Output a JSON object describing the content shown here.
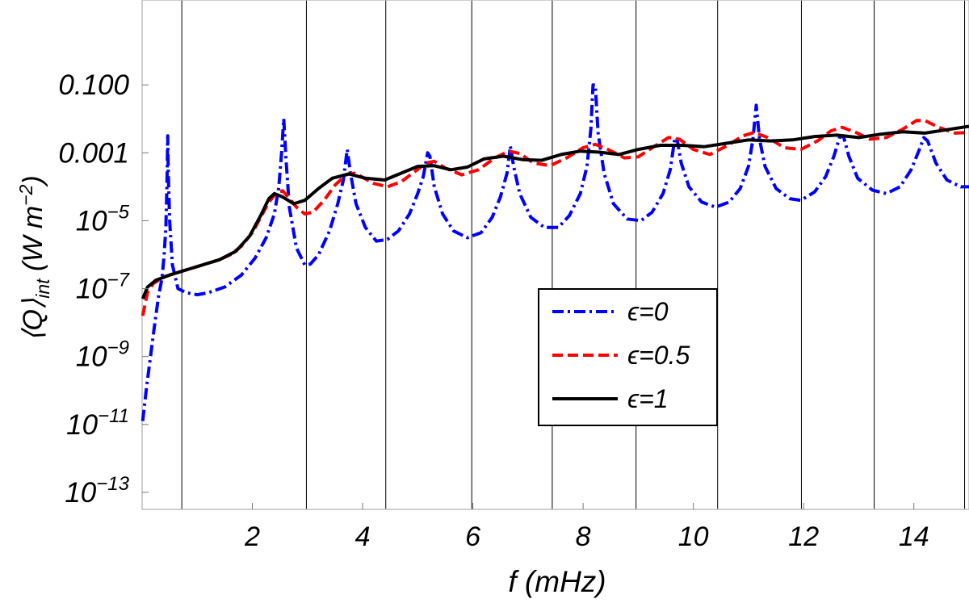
{
  "chart_data": {
    "type": "line",
    "xlabel": "f (mHz)",
    "ylabel": "⟨Q⟩int (W m−2)",
    "x_range": [
      0.0,
      15.0
    ],
    "y_range_log10": [
      -13.5,
      1.5
    ],
    "y_scale": "log",
    "x_ticks": [
      "2",
      "4",
      "6",
      "8",
      "10",
      "12",
      "14"
    ],
    "x_tick_values": [
      2,
      4,
      6,
      8,
      10,
      12,
      14
    ],
    "y_ticks": [
      {
        "base": "0.100",
        "exp": ""
      },
      {
        "base": "0.001",
        "exp": ""
      },
      {
        "base": "10",
        "exp": "−5"
      },
      {
        "base": "10",
        "exp": "−7"
      },
      {
        "base": "10",
        "exp": "−9"
      },
      {
        "base": "10",
        "exp": "−11"
      },
      {
        "base": "10",
        "exp": "−13"
      }
    ],
    "y_tick_log10": [
      -1,
      -3,
      -5,
      -7,
      -9,
      -11,
      -13
    ],
    "vertical_gridlines_mHz": [
      0.72,
      2.98,
      4.42,
      5.98,
      7.44,
      8.96,
      10.44,
      11.96,
      13.28,
      14.92
    ],
    "legend_position": "center-right",
    "series": [
      {
        "name": "ϵ=0",
        "color": "#0000ff",
        "style": "dash-dot",
        "points": [
          [
            0.01,
            -10.9
          ],
          [
            0.08,
            -9.9
          ],
          [
            0.16,
            -8.9
          ],
          [
            0.24,
            -7.9
          ],
          [
            0.3,
            -7.2
          ],
          [
            0.36,
            -6.7
          ],
          [
            0.4,
            -6.0
          ],
          [
            0.43,
            -5.2
          ],
          [
            0.45,
            -4.0
          ],
          [
            0.465,
            -2.5
          ],
          [
            0.475,
            -3.6
          ],
          [
            0.5,
            -5.0
          ],
          [
            0.55,
            -6.3
          ],
          [
            0.65,
            -7.0
          ],
          [
            0.8,
            -7.12
          ],
          [
            1.0,
            -7.18
          ],
          [
            1.2,
            -7.12
          ],
          [
            1.5,
            -6.95
          ],
          [
            1.8,
            -6.6
          ],
          [
            2.05,
            -6.1
          ],
          [
            2.25,
            -5.5
          ],
          [
            2.4,
            -4.8
          ],
          [
            2.48,
            -4.0
          ],
          [
            2.53,
            -3.0
          ],
          [
            2.57,
            -2.0
          ],
          [
            2.61,
            -3.2
          ],
          [
            2.67,
            -4.6
          ],
          [
            2.8,
            -5.8
          ],
          [
            2.95,
            -6.3
          ],
          [
            3.05,
            -6.28
          ],
          [
            3.2,
            -6.0
          ],
          [
            3.4,
            -5.3
          ],
          [
            3.55,
            -4.5
          ],
          [
            3.65,
            -3.8
          ],
          [
            3.72,
            -2.9
          ],
          [
            3.78,
            -3.6
          ],
          [
            3.88,
            -4.5
          ],
          [
            4.05,
            -5.2
          ],
          [
            4.25,
            -5.6
          ],
          [
            4.45,
            -5.55
          ],
          [
            4.65,
            -5.3
          ],
          [
            4.85,
            -4.8
          ],
          [
            5.0,
            -4.2
          ],
          [
            5.1,
            -3.7
          ],
          [
            5.18,
            -3.0
          ],
          [
            5.22,
            -3.1
          ],
          [
            5.3,
            -4.0
          ],
          [
            5.45,
            -4.8
          ],
          [
            5.65,
            -5.3
          ],
          [
            5.9,
            -5.5
          ],
          [
            6.15,
            -5.35
          ],
          [
            6.35,
            -4.9
          ],
          [
            6.5,
            -4.3
          ],
          [
            6.62,
            -3.6
          ],
          [
            6.68,
            -2.8
          ],
          [
            6.74,
            -3.4
          ],
          [
            6.85,
            -4.2
          ],
          [
            7.05,
            -4.9
          ],
          [
            7.3,
            -5.2
          ],
          [
            7.55,
            -5.2
          ],
          [
            7.75,
            -4.85
          ],
          [
            7.95,
            -4.2
          ],
          [
            8.07,
            -3.4
          ],
          [
            8.14,
            -2.3
          ],
          [
            8.18,
            -1.0
          ],
          [
            8.22,
            -1.0
          ],
          [
            8.27,
            -2.4
          ],
          [
            8.38,
            -3.6
          ],
          [
            8.55,
            -4.5
          ],
          [
            8.8,
            -4.95
          ],
          [
            9.05,
            -5.0
          ],
          [
            9.25,
            -4.75
          ],
          [
            9.45,
            -4.2
          ],
          [
            9.58,
            -3.5
          ],
          [
            9.66,
            -2.6
          ],
          [
            9.7,
            -2.55
          ],
          [
            9.78,
            -3.3
          ],
          [
            9.92,
            -4.0
          ],
          [
            10.15,
            -4.45
          ],
          [
            10.4,
            -4.6
          ],
          [
            10.65,
            -4.45
          ],
          [
            10.85,
            -4.05
          ],
          [
            11.0,
            -3.4
          ],
          [
            11.08,
            -2.6
          ],
          [
            11.14,
            -1.6
          ],
          [
            11.2,
            -2.6
          ],
          [
            11.3,
            -3.4
          ],
          [
            11.5,
            -4.05
          ],
          [
            11.75,
            -4.35
          ],
          [
            11.95,
            -4.4
          ],
          [
            12.2,
            -4.15
          ],
          [
            12.4,
            -3.7
          ],
          [
            12.55,
            -3.1
          ],
          [
            12.65,
            -2.55
          ],
          [
            12.72,
            -2.5
          ],
          [
            12.82,
            -3.1
          ],
          [
            12.98,
            -3.75
          ],
          [
            13.25,
            -4.1
          ],
          [
            13.5,
            -4.2
          ],
          [
            13.75,
            -4.0
          ],
          [
            13.95,
            -3.5
          ],
          [
            14.1,
            -2.9
          ],
          [
            14.18,
            -2.55
          ],
          [
            14.25,
            -2.65
          ],
          [
            14.4,
            -3.3
          ],
          [
            14.6,
            -3.8
          ],
          [
            14.85,
            -4.0
          ],
          [
            15.0,
            -4.0
          ]
        ]
      },
      {
        "name": "ϵ=0.5",
        "color": "#ff0000",
        "style": "dashed",
        "points": [
          [
            0.01,
            -7.8
          ],
          [
            0.1,
            -7.1
          ],
          [
            0.2,
            -6.85
          ],
          [
            0.4,
            -6.65
          ],
          [
            0.6,
            -6.55
          ],
          [
            0.8,
            -6.45
          ],
          [
            1.0,
            -6.35
          ],
          [
            1.2,
            -6.25
          ],
          [
            1.4,
            -6.15
          ],
          [
            1.6,
            -6.0
          ],
          [
            1.8,
            -5.75
          ],
          [
            2.0,
            -5.35
          ],
          [
            2.15,
            -4.9
          ],
          [
            2.3,
            -4.45
          ],
          [
            2.45,
            -4.15
          ],
          [
            2.55,
            -4.12
          ],
          [
            2.65,
            -4.3
          ],
          [
            2.8,
            -4.6
          ],
          [
            2.95,
            -4.8
          ],
          [
            3.1,
            -4.75
          ],
          [
            3.3,
            -4.4
          ],
          [
            3.5,
            -3.95
          ],
          [
            3.7,
            -3.65
          ],
          [
            3.85,
            -3.6
          ],
          [
            4.0,
            -3.72
          ],
          [
            4.2,
            -3.9
          ],
          [
            4.45,
            -4.0
          ],
          [
            4.7,
            -3.85
          ],
          [
            4.95,
            -3.55
          ],
          [
            5.15,
            -3.3
          ],
          [
            5.3,
            -3.25
          ],
          [
            5.5,
            -3.45
          ],
          [
            5.8,
            -3.65
          ],
          [
            6.1,
            -3.5
          ],
          [
            6.4,
            -3.15
          ],
          [
            6.65,
            -2.95
          ],
          [
            6.85,
            -3.02
          ],
          [
            7.1,
            -3.3
          ],
          [
            7.4,
            -3.38
          ],
          [
            7.7,
            -3.15
          ],
          [
            8.0,
            -2.85
          ],
          [
            8.22,
            -2.75
          ],
          [
            8.45,
            -2.9
          ],
          [
            8.75,
            -3.15
          ],
          [
            9.0,
            -3.12
          ],
          [
            9.3,
            -2.8
          ],
          [
            9.55,
            -2.55
          ],
          [
            9.75,
            -2.6
          ],
          [
            10.0,
            -2.9
          ],
          [
            10.3,
            -3.05
          ],
          [
            10.6,
            -2.8
          ],
          [
            10.9,
            -2.5
          ],
          [
            11.1,
            -2.4
          ],
          [
            11.35,
            -2.55
          ],
          [
            11.65,
            -2.85
          ],
          [
            11.95,
            -2.9
          ],
          [
            12.25,
            -2.65
          ],
          [
            12.5,
            -2.35
          ],
          [
            12.7,
            -2.25
          ],
          [
            12.95,
            -2.4
          ],
          [
            13.2,
            -2.6
          ],
          [
            13.5,
            -2.55
          ],
          [
            13.8,
            -2.3
          ],
          [
            14.05,
            -2.05
          ],
          [
            14.2,
            -2.05
          ],
          [
            14.45,
            -2.25
          ],
          [
            14.75,
            -2.42
          ],
          [
            15.0,
            -2.4
          ]
        ]
      },
      {
        "name": "ϵ=1",
        "color": "#000000",
        "style": "solid",
        "points": [
          [
            0.01,
            -7.3
          ],
          [
            0.1,
            -6.95
          ],
          [
            0.25,
            -6.75
          ],
          [
            0.5,
            -6.6
          ],
          [
            0.8,
            -6.45
          ],
          [
            1.1,
            -6.3
          ],
          [
            1.4,
            -6.15
          ],
          [
            1.7,
            -5.9
          ],
          [
            1.95,
            -5.45
          ],
          [
            2.15,
            -4.85
          ],
          [
            2.3,
            -4.35
          ],
          [
            2.4,
            -4.2
          ],
          [
            2.55,
            -4.3
          ],
          [
            2.75,
            -4.5
          ],
          [
            2.95,
            -4.4
          ],
          [
            3.2,
            -4.05
          ],
          [
            3.45,
            -3.75
          ],
          [
            3.75,
            -3.62
          ],
          [
            4.05,
            -3.75
          ],
          [
            4.4,
            -3.8
          ],
          [
            4.7,
            -3.6
          ],
          [
            5.0,
            -3.4
          ],
          [
            5.3,
            -3.38
          ],
          [
            5.6,
            -3.5
          ],
          [
            5.9,
            -3.42
          ],
          [
            6.2,
            -3.18
          ],
          [
            6.55,
            -3.1
          ],
          [
            6.9,
            -3.2
          ],
          [
            7.25,
            -3.22
          ],
          [
            7.6,
            -3.05
          ],
          [
            7.95,
            -2.95
          ],
          [
            8.3,
            -2.98
          ],
          [
            8.65,
            -3.05
          ],
          [
            9.0,
            -2.9
          ],
          [
            9.4,
            -2.78
          ],
          [
            9.8,
            -2.78
          ],
          [
            10.2,
            -2.82
          ],
          [
            10.6,
            -2.72
          ],
          [
            11.0,
            -2.62
          ],
          [
            11.4,
            -2.65
          ],
          [
            11.8,
            -2.62
          ],
          [
            12.2,
            -2.52
          ],
          [
            12.6,
            -2.48
          ],
          [
            13.0,
            -2.55
          ],
          [
            13.4,
            -2.45
          ],
          [
            13.8,
            -2.38
          ],
          [
            14.2,
            -2.42
          ],
          [
            14.6,
            -2.32
          ],
          [
            15.0,
            -2.22
          ]
        ]
      }
    ]
  }
}
